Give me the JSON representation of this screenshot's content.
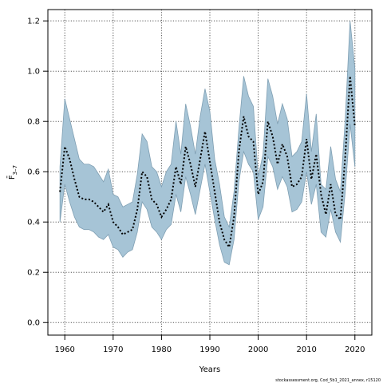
{
  "chart_data": {
    "type": "line",
    "xlabel": "Years",
    "ylabel": "F̄3–7",
    "ylabel_main": "F̄",
    "ylabel_sub": "3–7",
    "xlim": [
      1956.5,
      2023.5
    ],
    "ylim": [
      -0.05,
      1.245
    ],
    "xticks": [
      1960,
      1970,
      1980,
      1990,
      2000,
      2010,
      2020
    ],
    "yticks": [
      0.0,
      0.2,
      0.4,
      0.6,
      0.8,
      1.0,
      1.2
    ],
    "ytick_labels": [
      "0.0",
      "0.2",
      "0.4",
      "0.6",
      "0.8",
      "1.0",
      "1.2"
    ],
    "grid": true,
    "credit": "stockassessment.org, Cod_5b1_2021_annex, r15120",
    "colors": {
      "band": "#a6c4d6",
      "band_edge": "#7f9fb3",
      "line": "#000000",
      "grid": "#555555"
    },
    "series": [
      {
        "kind": "estimate",
        "x": [
          1959,
          1960,
          1961,
          1962,
          1963,
          1964,
          1965,
          1966,
          1967,
          1968,
          1969,
          1970,
          1971,
          1972,
          1973,
          1974,
          1975,
          1976,
          1977,
          1978,
          1979,
          1980,
          1981,
          1982,
          1983,
          1984,
          1985,
          1986,
          1987,
          1988,
          1989,
          1990,
          1991,
          1992,
          1993,
          1994,
          1995,
          1996,
          1997,
          1998,
          1999,
          2000,
          2001,
          2002,
          2003,
          2004,
          2005,
          2006,
          2007,
          2008,
          2009,
          2010,
          2011,
          2012,
          2013,
          2014,
          2015,
          2016,
          2017,
          2018,
          2019,
          2020
        ],
        "y": [
          0.52,
          0.7,
          0.65,
          0.57,
          0.5,
          0.49,
          0.49,
          0.48,
          0.46,
          0.44,
          0.47,
          0.4,
          0.38,
          0.35,
          0.36,
          0.37,
          0.45,
          0.6,
          0.58,
          0.49,
          0.47,
          0.42,
          0.45,
          0.49,
          0.62,
          0.55,
          0.7,
          0.63,
          0.54,
          0.65,
          0.76,
          0.64,
          0.52,
          0.4,
          0.33,
          0.3,
          0.42,
          0.68,
          0.82,
          0.74,
          0.72,
          0.51,
          0.56,
          0.8,
          0.74,
          0.63,
          0.71,
          0.66,
          0.54,
          0.55,
          0.58,
          0.73,
          0.57,
          0.67,
          0.51,
          0.43,
          0.55,
          0.43,
          0.41,
          0.66,
          0.98,
          0.78
        ]
      },
      {
        "kind": "upper",
        "x": [
          1959,
          1960,
          1961,
          1962,
          1963,
          1964,
          1965,
          1966,
          1967,
          1968,
          1969,
          1970,
          1971,
          1972,
          1973,
          1974,
          1975,
          1976,
          1977,
          1978,
          1979,
          1980,
          1981,
          1982,
          1983,
          1984,
          1985,
          1986,
          1987,
          1988,
          1989,
          1990,
          1991,
          1992,
          1993,
          1994,
          1995,
          1996,
          1997,
          1998,
          1999,
          2000,
          2001,
          2002,
          2003,
          2004,
          2005,
          2006,
          2007,
          2008,
          2009,
          2010,
          2011,
          2012,
          2013,
          2014,
          2015,
          2016,
          2017,
          2018,
          2019,
          2020
        ],
        "y": [
          0.62,
          0.89,
          0.81,
          0.73,
          0.65,
          0.63,
          0.63,
          0.62,
          0.59,
          0.56,
          0.61,
          0.51,
          0.5,
          0.46,
          0.47,
          0.48,
          0.59,
          0.75,
          0.72,
          0.62,
          0.6,
          0.54,
          0.6,
          0.63,
          0.8,
          0.67,
          0.87,
          0.78,
          0.67,
          0.82,
          0.93,
          0.84,
          0.65,
          0.55,
          0.42,
          0.38,
          0.52,
          0.77,
          0.98,
          0.9,
          0.86,
          0.58,
          0.67,
          0.97,
          0.9,
          0.79,
          0.87,
          0.81,
          0.66,
          0.68,
          0.72,
          0.91,
          0.68,
          0.83,
          0.55,
          0.53,
          0.7,
          0.57,
          0.52,
          0.81,
          1.2,
          1.01
        ]
      },
      {
        "kind": "lower",
        "x": [
          1959,
          1960,
          1961,
          1962,
          1963,
          1964,
          1965,
          1966,
          1967,
          1968,
          1969,
          1970,
          1971,
          1972,
          1973,
          1974,
          1975,
          1976,
          1977,
          1978,
          1979,
          1980,
          1981,
          1982,
          1983,
          1984,
          1985,
          1986,
          1987,
          1988,
          1989,
          1990,
          1991,
          1992,
          1993,
          1994,
          1995,
          1996,
          1997,
          1998,
          1999,
          2000,
          2001,
          2002,
          2003,
          2004,
          2005,
          2006,
          2007,
          2008,
          2009,
          2010,
          2011,
          2012,
          2013,
          2014,
          2015,
          2016,
          2017,
          2018,
          2019,
          2020
        ],
        "y": [
          0.4,
          0.55,
          0.48,
          0.42,
          0.38,
          0.37,
          0.37,
          0.36,
          0.34,
          0.33,
          0.35,
          0.3,
          0.29,
          0.26,
          0.28,
          0.29,
          0.36,
          0.48,
          0.45,
          0.38,
          0.36,
          0.33,
          0.37,
          0.39,
          0.51,
          0.44,
          0.58,
          0.51,
          0.43,
          0.53,
          0.63,
          0.52,
          0.41,
          0.31,
          0.24,
          0.23,
          0.33,
          0.56,
          0.68,
          0.63,
          0.6,
          0.41,
          0.46,
          0.66,
          0.62,
          0.53,
          0.58,
          0.54,
          0.44,
          0.45,
          0.48,
          0.6,
          0.47,
          0.55,
          0.36,
          0.34,
          0.45,
          0.36,
          0.32,
          0.52,
          0.79,
          0.62
        ]
      }
    ]
  }
}
